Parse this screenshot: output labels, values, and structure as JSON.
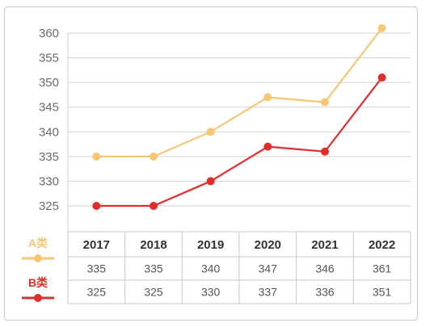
{
  "chart_data": {
    "type": "line",
    "categories": [
      "2017",
      "2018",
      "2019",
      "2020",
      "2021",
      "2022"
    ],
    "series": [
      {
        "name": "A类",
        "color": "#f8c775",
        "values": [
          335,
          335,
          340,
          347,
          346,
          361
        ]
      },
      {
        "name": "B类",
        "color": "#e02e2a",
        "values": [
          325,
          325,
          330,
          337,
          336,
          351
        ]
      }
    ],
    "yticks": [
      325,
      330,
      335,
      340,
      345,
      350,
      355,
      360
    ],
    "ylim": [
      325,
      360
    ],
    "title": "",
    "xlabel": "",
    "ylabel": "",
    "grid": true,
    "legend_position": "left of data table"
  }
}
